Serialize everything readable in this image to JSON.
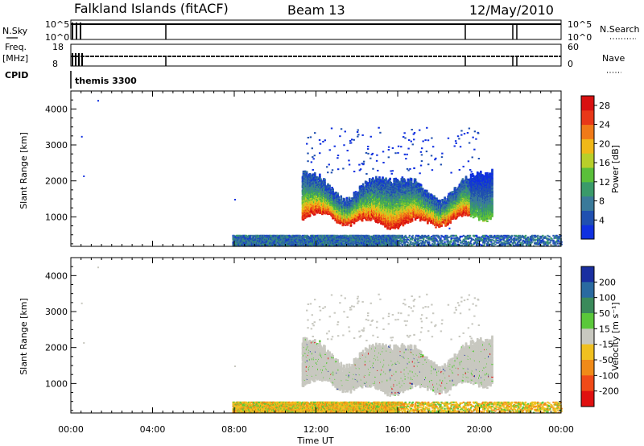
{
  "header": {
    "station": "Falkland Islands (fitACF)",
    "beam": "Beam 13",
    "date": "12/May/2010"
  },
  "top_panels": {
    "nsky_label": "N.Sky",
    "nsky_ticks": [
      "10^5",
      "10^0"
    ],
    "nsearch_label": "N.Search",
    "nsearch_ticks": [
      "10^5",
      "10^0"
    ],
    "freq_label_1": "Freq.",
    "freq_label_2": "[MHz]",
    "freq_ticks": [
      "18",
      "8"
    ],
    "nave_label": "Nave",
    "nave_ticks": [
      "60",
      "0"
    ],
    "cpid_label": "CPID",
    "cpid_value": "themis 3300"
  },
  "chart_data": [
    {
      "type": "heatmap",
      "title": "",
      "xlabel": "Time UT",
      "ylabel": "Slant Range [km]",
      "x_ticks": [
        "00:00",
        "04:00",
        "08:00",
        "12:00",
        "16:00",
        "20:00",
        "00:00"
      ],
      "y_ticks": [
        1000,
        2000,
        3000,
        4000
      ],
      "xlim_hours": [
        0,
        24
      ],
      "ylim_km": [
        180,
        4500
      ],
      "colorbar": {
        "label": "Power [dB]",
        "ticks": [
          4,
          8,
          12,
          16,
          20,
          24,
          28
        ],
        "range": [
          0,
          30
        ],
        "colors": [
          "#1030e0",
          "#2050b0",
          "#3a7a9a",
          "#3a9a6a",
          "#5abf3a",
          "#b8cf2a",
          "#f0b818",
          "#f07a18",
          "#e83818",
          "#d81010"
        ]
      },
      "echo_regions": [
        {
          "name": "ionospheric scatter",
          "t_start_hr": 11.3,
          "t_end_hr": 20.6,
          "range_km": [
            800,
            3000
          ],
          "peak_power_db": 28
        },
        {
          "name": "near-range scatter",
          "t_start_hr": 7.9,
          "t_end_hr": 24.0,
          "range_km": [
            180,
            500
          ],
          "peak_power_db": 8
        }
      ]
    },
    {
      "type": "heatmap",
      "title": "",
      "xlabel": "Time UT",
      "ylabel": "Slant Range [km]",
      "x_ticks": [
        "00:00",
        "04:00",
        "08:00",
        "12:00",
        "16:00",
        "20:00",
        "00:00"
      ],
      "y_ticks": [
        1000,
        2000,
        3000,
        4000
      ],
      "xlim_hours": [
        0,
        24
      ],
      "ylim_km": [
        180,
        4500
      ],
      "colorbar": {
        "label": "Velocity [m s⁻¹]",
        "ticks": [
          "200",
          "100",
          "50",
          "15",
          "-15",
          "-50",
          "-100",
          "-200"
        ],
        "colors": [
          "#1a2fa0",
          "#2a6aa0",
          "#3a8a5a",
          "#5ac83a",
          "#c8c8c0",
          "#f0c020",
          "#f08a18",
          "#f04a18",
          "#e01010"
        ]
      },
      "echo_regions": [
        {
          "name": "ground scatter (gray)",
          "t_start_hr": 11.3,
          "t_end_hr": 20.6,
          "range_km": [
            800,
            3000
          ],
          "velocity_ms": 0
        },
        {
          "name": "near-range scatter",
          "t_start_hr": 7.9,
          "t_end_hr": 24.0,
          "range_km": [
            180,
            500
          ],
          "velocity_ms": -60
        }
      ]
    }
  ]
}
